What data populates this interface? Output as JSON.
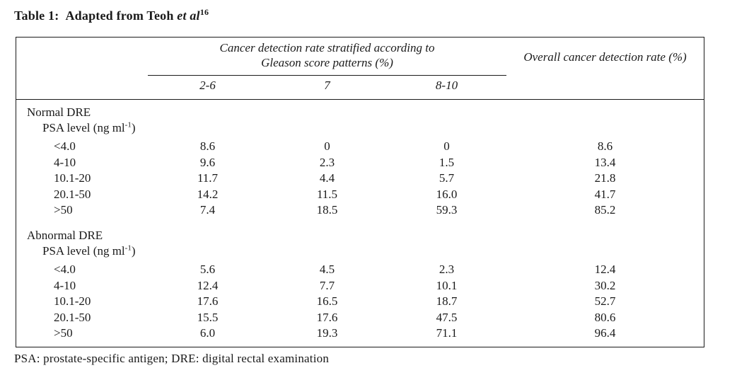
{
  "caption": {
    "label": "Table 1:",
    "text": "Adapted from Teoh",
    "et_al": "et al",
    "reference": "16"
  },
  "table": {
    "gleason_header_line1": "Cancer detection rate stratified according to",
    "gleason_header_line2": "Gleason score patterns (%)",
    "overall_header": "Overall cancer detection rate (%)",
    "gleason_columns": [
      "2-6",
      "7",
      "8-10"
    ],
    "sections": [
      {
        "name": "Normal DRE",
        "variable_label": {
          "pre": "PSA level (ng ml",
          "sup": "-1",
          "post": ")"
        },
        "rows": [
          {
            "psa_range": "<4.0",
            "values": [
              "8.6",
              "0",
              "0",
              "8.6"
            ]
          },
          {
            "psa_range": "4-10",
            "values": [
              "9.6",
              "2.3",
              "1.5",
              "13.4"
            ]
          },
          {
            "psa_range": "10.1-20",
            "values": [
              "11.7",
              "4.4",
              "5.7",
              "21.8"
            ]
          },
          {
            "psa_range": "20.1-50",
            "values": [
              "14.2",
              "11.5",
              "16.0",
              "41.7"
            ]
          },
          {
            "psa_range": ">50",
            "values": [
              "7.4",
              "18.5",
              "59.3",
              "85.2"
            ]
          }
        ]
      },
      {
        "name": "Abnormal DRE",
        "variable_label": {
          "pre": "PSA level (ng ml",
          "sup": "-1",
          "post": ")"
        },
        "rows": [
          {
            "psa_range": "<4.0",
            "values": [
              "5.6",
              "4.5",
              "2.3",
              "12.4"
            ]
          },
          {
            "psa_range": "4-10",
            "values": [
              "12.4",
              "7.7",
              "10.1",
              "30.2"
            ]
          },
          {
            "psa_range": "10.1-20",
            "values": [
              "17.6",
              "16.5",
              "18.7",
              "52.7"
            ]
          },
          {
            "psa_range": "20.1-50",
            "values": [
              "15.5",
              "17.6",
              "47.5",
              "80.6"
            ]
          },
          {
            "psa_range": ">50",
            "values": [
              "6.0",
              "19.3",
              "71.1",
              "96.4"
            ]
          }
        ]
      }
    ]
  },
  "footnote": "PSA: prostate-specific antigen; DRE: digital rectal examination"
}
